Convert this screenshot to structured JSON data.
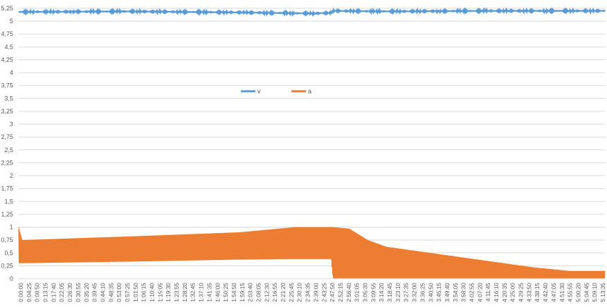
{
  "chart_data": {
    "type": "line",
    "title": "",
    "xlabel": "",
    "ylabel": "",
    "ylim": [
      0,
      5.25
    ],
    "y_ticks": [
      "0",
      "0,25",
      "0,5",
      "0,75",
      "1",
      "1,25",
      "1,5",
      "1,75",
      "2",
      "2,25",
      "2,5",
      "2,75",
      "3",
      "3,25",
      "3,5",
      "3,75",
      "4",
      "4,25",
      "4,5",
      "4,75",
      "5",
      "5,25"
    ],
    "x_ticks": [
      "0:00:00",
      "0:04:25",
      "0:08:50",
      "0:13:15",
      "0:17:40",
      "0:22:05",
      "0:26:30",
      "0:30:55",
      "0:35:20",
      "0:39:45",
      "0:44:10",
      "0:48:35",
      "0:53:00",
      "0:57:25",
      "1:01:50",
      "1:06:15",
      "1:10:40",
      "1:15:05",
      "1:19:30",
      "1:23:55",
      "1:28:20",
      "1:32:45",
      "1:37:10",
      "1:41:35",
      "1:46:00",
      "1:50:25",
      "1:54:50",
      "1:59:15",
      "2:03:40",
      "2:08:05",
      "2:12:30",
      "2:16:55",
      "2:21:20",
      "2:25:45",
      "2:30:10",
      "2:34:35",
      "2:39:00",
      "2:43:25",
      "2:47:50",
      "2:52:15",
      "2:56:40",
      "3:01:05",
      "3:05:30",
      "3:09:55",
      "3:14:20",
      "3:18:45",
      "3:23:10",
      "3:27:35",
      "3:32:00",
      "3:36:25",
      "3:40:50",
      "3:45:15",
      "3:49:40",
      "3:54:05",
      "3:58:30",
      "4:02:55",
      "4:07:20",
      "4:11:45",
      "4:16:10",
      "4:20:35",
      "4:25:00",
      "4:29:25",
      "4:33:50",
      "4:38:15",
      "4:42:40",
      "4:47:05",
      "4:51:30",
      "4:55:55",
      "5:00:20",
      "5:04:45",
      "5:09:10",
      "5:13:35"
    ],
    "grid": true,
    "legend_position": "top-center",
    "series": [
      {
        "name": "v",
        "color": "#5b9bd5",
        "x_minutes": [
          0,
          60,
          120,
          160,
          170,
          171,
          200,
          260,
          319
        ],
        "values": [
          5.18,
          5.19,
          5.17,
          5.15,
          5.16,
          5.2,
          5.19,
          5.2,
          5.2
        ]
      },
      {
        "name": "a",
        "color": "#ed7d31",
        "style": "oscillating envelope",
        "x_minutes": [
          0,
          2,
          60,
          120,
          150,
          160,
          170,
          171,
          180,
          190,
          200,
          220,
          240,
          260,
          280,
          300,
          319
        ],
        "upper": [
          1.0,
          0.75,
          0.82,
          0.9,
          1.0,
          1.0,
          1.0,
          1.0,
          0.97,
          0.75,
          0.62,
          0.52,
          0.42,
          0.32,
          0.22,
          0.15,
          0.15
        ],
        "lower": [
          0.3,
          0.3,
          0.33,
          0.37,
          0.38,
          0.38,
          0.38,
          0.0,
          0.0,
          0.0,
          0.0,
          0.0,
          0.0,
          0.0,
          0.0,
          0.0,
          0.0
        ]
      }
    ]
  }
}
